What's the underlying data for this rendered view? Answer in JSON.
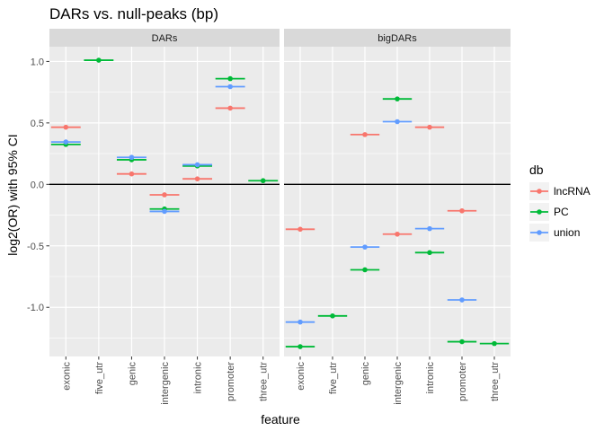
{
  "chart_data": {
    "type": "scatter",
    "title": "DARs vs. null-peaks (bp)",
    "xlabel": "feature",
    "ylabel": "log2(OR) with 95% CI",
    "ylim": [
      -1.4,
      1.12
    ],
    "yticks": [
      -1.0,
      -0.5,
      0.0,
      0.5,
      1.0
    ],
    "ytick_labels": [
      "-1.0",
      "-0.5",
      "0.0",
      "0.5",
      "1.0"
    ],
    "reference_line": 0,
    "grid": true,
    "legend_position": "right",
    "legend_title": "db",
    "series": [
      {
        "name": "lncRNA",
        "color": "#F8766D"
      },
      {
        "name": "PC",
        "color": "#00BA38"
      },
      {
        "name": "union",
        "color": "#619CFF"
      }
    ],
    "facets": [
      {
        "name": "DARs",
        "categories": [
          "exonic",
          "five_utr",
          "genic",
          "intergenic",
          "intronic",
          "promoter",
          "three_utr"
        ],
        "points": [
          {
            "x": "exonic",
            "series": "lncRNA",
            "y": 0.465
          },
          {
            "x": "exonic",
            "series": "PC",
            "y": 0.325
          },
          {
            "x": "exonic",
            "series": "union",
            "y": 0.345
          },
          {
            "x": "five_utr",
            "series": "PC",
            "y": 1.01
          },
          {
            "x": "genic",
            "series": "lncRNA",
            "y": 0.085
          },
          {
            "x": "genic",
            "series": "PC",
            "y": 0.2
          },
          {
            "x": "genic",
            "series": "union",
            "y": 0.22
          },
          {
            "x": "intergenic",
            "series": "lncRNA",
            "y": -0.085
          },
          {
            "x": "intergenic",
            "series": "PC",
            "y": -0.2
          },
          {
            "x": "intergenic",
            "series": "union",
            "y": -0.22
          },
          {
            "x": "intronic",
            "series": "lncRNA",
            "y": 0.045
          },
          {
            "x": "intronic",
            "series": "PC",
            "y": 0.15
          },
          {
            "x": "intronic",
            "series": "union",
            "y": 0.16
          },
          {
            "x": "promoter",
            "series": "lncRNA",
            "y": 0.62
          },
          {
            "x": "promoter",
            "series": "PC",
            "y": 0.86
          },
          {
            "x": "promoter",
            "series": "union",
            "y": 0.795
          },
          {
            "x": "three_utr",
            "series": "PC",
            "y": 0.03
          }
        ]
      },
      {
        "name": "bigDARs",
        "categories": [
          "exonic",
          "five_utr",
          "genic",
          "intergenic",
          "intronic",
          "promoter",
          "three_utr"
        ],
        "points": [
          {
            "x": "exonic",
            "series": "lncRNA",
            "y": -0.365
          },
          {
            "x": "exonic",
            "series": "PC",
            "y": -1.32
          },
          {
            "x": "exonic",
            "series": "union",
            "y": -1.12
          },
          {
            "x": "five_utr",
            "series": "PC",
            "y": -1.07
          },
          {
            "x": "genic",
            "series": "lncRNA",
            "y": 0.405
          },
          {
            "x": "genic",
            "series": "PC",
            "y": -0.695
          },
          {
            "x": "genic",
            "series": "union",
            "y": -0.51
          },
          {
            "x": "intergenic",
            "series": "lncRNA",
            "y": -0.405
          },
          {
            "x": "intergenic",
            "series": "PC",
            "y": 0.695
          },
          {
            "x": "intergenic",
            "series": "union",
            "y": 0.51
          },
          {
            "x": "intronic",
            "series": "lncRNA",
            "y": 0.465
          },
          {
            "x": "intronic",
            "series": "PC",
            "y": -0.555
          },
          {
            "x": "intronic",
            "series": "union",
            "y": -0.36
          },
          {
            "x": "promoter",
            "series": "lncRNA",
            "y": -0.215
          },
          {
            "x": "promoter",
            "series": "PC",
            "y": -1.28
          },
          {
            "x": "promoter",
            "series": "union",
            "y": -0.94
          },
          {
            "x": "three_utr",
            "series": "PC",
            "y": -1.295
          }
        ]
      }
    ]
  }
}
